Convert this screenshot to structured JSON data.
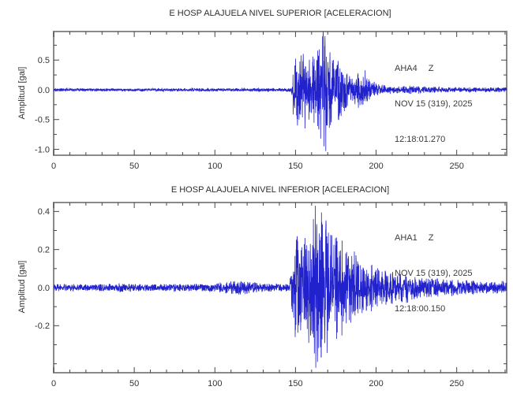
{
  "page": {
    "background": "#ffffff",
    "frame_color": "#8a8a8a",
    "tick_color": "#474747",
    "text_color": "#333333"
  },
  "chart_data": [
    {
      "type": "line",
      "chart_kind": "seismogram-acceleration",
      "title": "E HOSP ALAJUELA NIVEL SUPERIOR [ACELERACION]",
      "station": "AHA4",
      "component": "Z",
      "date_line": "NOV 15 (319), 2025",
      "time_line": "12:18:01.270",
      "ylabel": "Amplitud [gal]",
      "xlabel": "",
      "line_color": "#2222cc",
      "xlim": [
        0,
        281
      ],
      "ylim": [
        -1.1,
        0.98
      ],
      "grid": false,
      "xticks": {
        "major": [
          0,
          50,
          100,
          150,
          200,
          250
        ],
        "major_labels": [
          "0",
          "50",
          "100",
          "150",
          "200",
          "250"
        ],
        "minor_step": 10
      },
      "yticks": {
        "major": [
          0.5,
          0.0,
          -0.5,
          -1.0
        ],
        "major_labels": [
          "0.5",
          "0.0",
          "-0.5",
          "-1.0"
        ],
        "minor_step": 0.25
      },
      "event_start_s": 148,
      "peak_max_gal": 0.9,
      "peak_min_gal": -1.03,
      "noise_seed": 1319,
      "envelope": [
        [
          0,
          0.022
        ],
        [
          60,
          0.022
        ],
        [
          100,
          0.024
        ],
        [
          130,
          0.024
        ],
        [
          146,
          0.024
        ],
        [
          147.5,
          0.06
        ],
        [
          148.5,
          0.35
        ],
        [
          150,
          0.55
        ],
        [
          152,
          0.5
        ],
        [
          154,
          0.55
        ],
        [
          156,
          0.48
        ],
        [
          158,
          0.55
        ],
        [
          160,
          0.5
        ],
        [
          162,
          0.55
        ],
        [
          164,
          0.6
        ],
        [
          166,
          0.8
        ],
        [
          168,
          0.9
        ],
        [
          169.5,
          0.7
        ],
        [
          171,
          0.62
        ],
        [
          173,
          0.5
        ],
        [
          175,
          0.4
        ],
        [
          177,
          0.42
        ],
        [
          179,
          0.35
        ],
        [
          181,
          0.3
        ],
        [
          183,
          0.26
        ],
        [
          185,
          0.22
        ],
        [
          187,
          0.24
        ],
        [
          189,
          0.28
        ],
        [
          192,
          0.26
        ],
        [
          194,
          0.2
        ],
        [
          196,
          0.14
        ],
        [
          199,
          0.11
        ],
        [
          203,
          0.085
        ],
        [
          208,
          0.065
        ],
        [
          213,
          0.055
        ],
        [
          218,
          0.05
        ],
        [
          222,
          0.065
        ],
        [
          226,
          0.055
        ],
        [
          232,
          0.045
        ],
        [
          240,
          0.04
        ],
        [
          255,
          0.035
        ],
        [
          270,
          0.033
        ],
        [
          281,
          0.033
        ]
      ],
      "spikes": [
        [
          151.2,
          -0.6
        ],
        [
          153.4,
          0.58
        ],
        [
          155.9,
          -0.65
        ],
        [
          160.8,
          0.56
        ],
        [
          165.6,
          -0.82
        ],
        [
          166.9,
          0.9
        ],
        [
          168.8,
          -1.03
        ],
        [
          171.4,
          0.63
        ],
        [
          178.3,
          -0.44
        ],
        [
          193.2,
          0.33
        ]
      ]
    },
    {
      "type": "line",
      "chart_kind": "seismogram-acceleration",
      "title": "E HOSP ALAJUELA NIVEL INFERIOR [ACELERACION]",
      "station": "AHA1",
      "component": "Z",
      "date_line": "NOV 15 (319), 2025",
      "time_line": "12:18:00.150",
      "ylabel": "Amplitud [gal]",
      "xlabel": "",
      "line_color": "#2222cc",
      "xlim": [
        0,
        281
      ],
      "ylim": [
        -0.447,
        0.447
      ],
      "grid": false,
      "xticks": {
        "major": [
          0,
          50,
          100,
          150,
          200,
          250
        ],
        "major_labels": [
          "0",
          "50",
          "100",
          "150",
          "200",
          "250"
        ],
        "minor_step": 10
      },
      "yticks": {
        "major": [
          0.4,
          0.2,
          0.0,
          -0.2
        ],
        "major_labels": [
          "0.4",
          "0.2",
          "0.0",
          "-0.2"
        ],
        "minor_step": 0.1
      },
      "event_start_s": 148,
      "peak_max_gal": 0.43,
      "peak_min_gal": -0.39,
      "noise_seed": 7731,
      "envelope": [
        [
          0,
          0.016
        ],
        [
          38,
          0.016
        ],
        [
          41,
          0.024
        ],
        [
          44,
          0.017
        ],
        [
          70,
          0.016
        ],
        [
          100,
          0.018
        ],
        [
          108,
          0.028
        ],
        [
          115,
          0.036
        ],
        [
          122,
          0.028
        ],
        [
          130,
          0.02
        ],
        [
          140,
          0.018
        ],
        [
          146,
          0.018
        ],
        [
          147.5,
          0.08
        ],
        [
          149,
          0.2
        ],
        [
          151,
          0.24
        ],
        [
          153,
          0.21
        ],
        [
          155,
          0.24
        ],
        [
          157,
          0.22
        ],
        [
          159,
          0.26
        ],
        [
          161,
          0.32
        ],
        [
          162.5,
          0.42
        ],
        [
          164,
          0.34
        ],
        [
          166,
          0.36
        ],
        [
          168,
          0.32
        ],
        [
          170,
          0.3
        ],
        [
          172,
          0.28
        ],
        [
          174,
          0.26
        ],
        [
          176,
          0.24
        ],
        [
          179,
          0.21
        ],
        [
          182,
          0.18
        ],
        [
          185,
          0.16
        ],
        [
          188,
          0.14
        ],
        [
          191,
          0.125
        ],
        [
          195,
          0.11
        ],
        [
          199,
          0.095
        ],
        [
          204,
          0.085
        ],
        [
          209,
          0.075
        ],
        [
          214,
          0.065
        ],
        [
          218,
          0.07
        ],
        [
          223,
          0.06
        ],
        [
          230,
          0.05
        ],
        [
          238,
          0.042
        ],
        [
          250,
          0.035
        ],
        [
          262,
          0.03
        ],
        [
          272,
          0.028
        ],
        [
          281,
          0.03
        ]
      ],
      "spikes": [
        [
          149.8,
          -0.26
        ],
        [
          151.0,
          0.27
        ],
        [
          158.2,
          -0.29
        ],
        [
          161.1,
          0.36
        ],
        [
          162.3,
          0.43
        ],
        [
          163.6,
          -0.39
        ],
        [
          165.9,
          -0.365
        ],
        [
          168.8,
          0.31
        ],
        [
          186.5,
          0.19
        ]
      ]
    }
  ]
}
